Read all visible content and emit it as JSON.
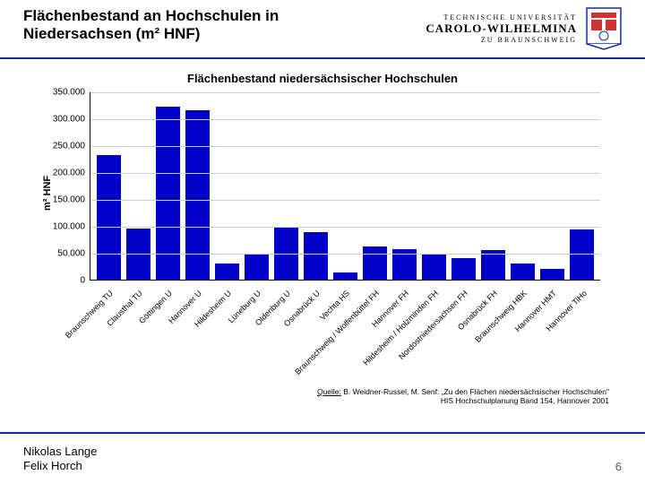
{
  "header": {
    "title": "Flächenbestand an Hochschulen in Niedersachsen (m² HNF)",
    "logo": {
      "line1": "TECHNISCHE UNIVERSITÄT",
      "line2": "CAROLO-WILHELMINA",
      "line3": "ZU BRAUNSCHWEIG"
    }
  },
  "chart": {
    "type": "bar",
    "title": "Flächenbestand niedersächsischer Hochschulen",
    "ylabel": "m² HNF",
    "ylim": [
      0,
      350000
    ],
    "ytick_step": 50000,
    "yticks": [
      "0",
      "50.000",
      "100.000",
      "150.000",
      "200.000",
      "250.000",
      "300.000",
      "350.000"
    ],
    "categories": [
      "Braunschweig TU",
      "Clausthal TU",
      "Göttingen U",
      "Hannover U",
      "Hildesheim U",
      "Lüneburg U",
      "Oldenburg U",
      "Osnabrück U",
      "Vechta HS",
      "Braunschweig / Wolfenbüttel FH",
      "Hannover FH",
      "Hildesheim / Holzminden FH",
      "Nordostniedersachsen FH",
      "Osnabrück FH",
      "Braunschweig HBK",
      "Hannover HMT",
      "Hannover TiHo"
    ],
    "values": [
      232000,
      95000,
      322000,
      315000,
      30000,
      46000,
      96000,
      88000,
      14000,
      62000,
      56000,
      46000,
      40000,
      55000,
      30000,
      20000,
      94000
    ],
    "bar_color": "#0000c8",
    "background_color": "#ffffff",
    "grid_color": "#d0d0d0",
    "axis_color": "#000000",
    "title_fontsize": 13,
    "label_fontsize": 11,
    "tick_fontsize": 10,
    "bar_width": 0.72
  },
  "source": {
    "label": "Quelle:",
    "text1": " B. Weidner-Russel, M. Senf: „Zu den Flächen niedersächsischer Hochschulen\"",
    "text2": "HIS Hochschulplanung Band 154, Hannover 2001"
  },
  "footer": {
    "author1": "Nikolas Lange",
    "author2": "Felix Horch",
    "page": "6"
  },
  "colors": {
    "rule": "#1a2a99",
    "text": "#000000"
  }
}
